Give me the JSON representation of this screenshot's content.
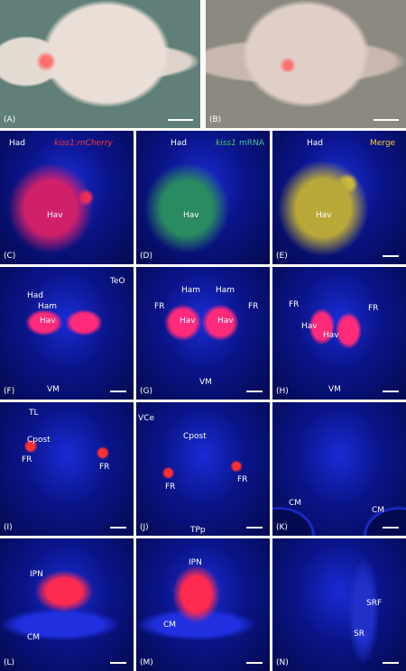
{
  "panels": [
    {
      "letter": "(A)"
    },
    {
      "letter": "(B)"
    },
    {
      "letter": "(C)",
      "labels": [
        "Had",
        "kiss1:mCherry",
        "Hav"
      ]
    },
    {
      "letter": "(D)",
      "labels": [
        "Had",
        "kiss1",
        "mRNA",
        "Hav"
      ]
    },
    {
      "letter": "(E)",
      "labels": [
        "Had",
        "Merge",
        "Hav"
      ]
    },
    {
      "letter": "(F)",
      "labels": [
        "TeO",
        "Had",
        "Ham",
        "Hav",
        "VM"
      ]
    },
    {
      "letter": "(G)",
      "labels": [
        "Ham",
        "Ham",
        "FR",
        "FR",
        "Hav",
        "Hav",
        "VM"
      ]
    },
    {
      "letter": "(H)",
      "labels": [
        "FR",
        "FR",
        "Hav",
        "Hav",
        "VM"
      ]
    },
    {
      "letter": "(I)",
      "labels": [
        "TL",
        "Cpost",
        "FR",
        "FR"
      ]
    },
    {
      "letter": "(J)",
      "labels": [
        "VCe",
        "Cpost",
        "FR",
        "FR",
        "TPp"
      ]
    },
    {
      "letter": "(K)",
      "labels": [
        "CM",
        "CM"
      ]
    },
    {
      "letter": "(L)",
      "labels": [
        "IPN",
        "CM"
      ]
    },
    {
      "letter": "(M)",
      "labels": [
        "IPN",
        "CM"
      ]
    },
    {
      "letter": "(N)",
      "labels": [
        "SRF",
        "SR"
      ]
    }
  ]
}
